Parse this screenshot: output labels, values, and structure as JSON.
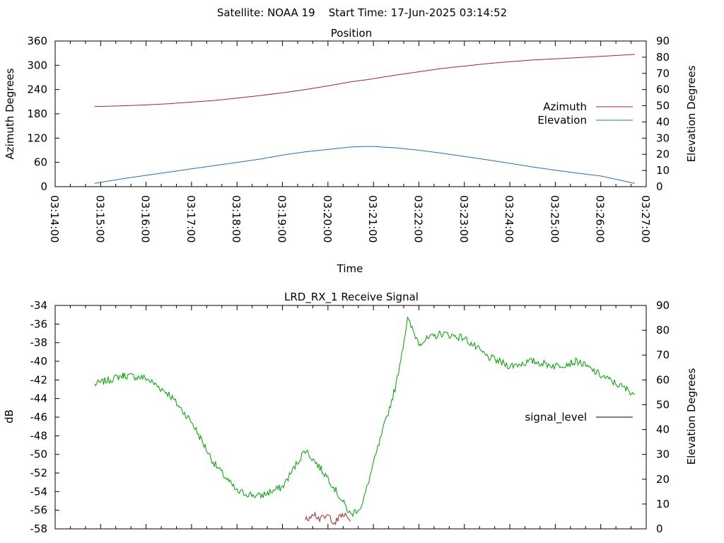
{
  "header": {
    "title": "Satellite: NOAA 19    Start Time: 17-Jun-2025 03:14:52"
  },
  "chart_data": [
    {
      "type": "line",
      "title": "Position",
      "xlabel": "Time",
      "ylabel": "Azimuth Degrees",
      "y2label": "Elevation Degrees",
      "xlim": [
        "03:14:00",
        "03:27:00"
      ],
      "ylim": [
        0,
        360
      ],
      "y2lim": [
        0,
        90
      ],
      "x_ticks": [
        "03:14:00",
        "03:15:00",
        "03:16:00",
        "03:17:00",
        "03:18:00",
        "03:19:00",
        "03:20:00",
        "03:21:00",
        "03:22:00",
        "03:23:00",
        "03:24:00",
        "03:25:00",
        "03:26:00",
        "03:27:00"
      ],
      "y_ticks": [
        "0",
        "60",
        "120",
        "180",
        "240",
        "300",
        "360"
      ],
      "y2_ticks": [
        "0",
        "10",
        "20",
        "30",
        "40",
        "50",
        "60",
        "70",
        "80",
        "90"
      ],
      "grid": false,
      "legend_position": "right",
      "x": [
        "03:14:52",
        "03:15:30",
        "03:16:00",
        "03:16:30",
        "03:17:00",
        "03:17:30",
        "03:18:00",
        "03:18:30",
        "03:19:00",
        "03:19:30",
        "03:20:00",
        "03:20:30",
        "03:20:50",
        "03:21:00",
        "03:21:30",
        "03:22:00",
        "03:22:30",
        "03:23:00",
        "03:23:30",
        "03:24:00",
        "03:24:30",
        "03:25:00",
        "03:25:30",
        "03:26:00",
        "03:26:45"
      ],
      "series": [
        {
          "name": "Azimuth",
          "axis": "left",
          "color": "#a0282d",
          "values": [
            198,
            200,
            202,
            205,
            209,
            213,
            219,
            225,
            232,
            240,
            249,
            259,
            264,
            267,
            276,
            284,
            292,
            298,
            304,
            309,
            313,
            316,
            319,
            322,
            327
          ]
        },
        {
          "name": "Elevation",
          "axis": "right",
          "color": "#2b6cb3",
          "values": [
            2,
            5,
            7,
            9,
            11,
            13,
            15,
            17,
            19.5,
            21.5,
            23,
            24.5,
            24.8,
            24.8,
            24,
            22.5,
            20.7,
            18.7,
            16.6,
            14.4,
            12.2,
            10.2,
            8.3,
            6.6,
            2
          ]
        }
      ]
    },
    {
      "type": "line",
      "title": "LRD_RX_1 Receive Signal",
      "ylabel": "dB",
      "y2label": "Elevation Degrees",
      "xlim": [
        "03:14:00",
        "03:27:00"
      ],
      "ylim": [
        -58,
        -34
      ],
      "y2lim": [
        0,
        90
      ],
      "y_ticks": [
        "-58",
        "-56",
        "-54",
        "-52",
        "-50",
        "-48",
        "-46",
        "-44",
        "-42",
        "-40",
        "-38",
        "-36",
        "-34"
      ],
      "y2_ticks": [
        "0",
        "10",
        "20",
        "30",
        "40",
        "50",
        "60",
        "70",
        "80",
        "90"
      ],
      "grid": false,
      "legend_position": "right",
      "legend": [
        {
          "name": "signal_level",
          "color": "#000000"
        }
      ],
      "series": [
        {
          "color": "#00a000",
          "x": [
            "03:14:52",
            "03:15:30",
            "03:16:00",
            "03:16:30",
            "03:17:00",
            "03:17:30",
            "03:18:00",
            "03:18:30",
            "03:19:00",
            "03:19:30",
            "03:20:00",
            "03:20:30",
            "03:20:45",
            "03:21:00",
            "03:21:30",
            "03:21:45",
            "03:22:00",
            "03:22:30",
            "03:23:00",
            "03:23:30",
            "03:24:00",
            "03:24:30",
            "03:25:00",
            "03:25:30",
            "03:26:00",
            "03:26:45"
          ],
          "values": [
            -42.5,
            -41.5,
            -41.8,
            -43.5,
            -46.5,
            -51,
            -54,
            -54.5,
            -53.5,
            -49.5,
            -52.5,
            -56.5,
            -55.5,
            -51,
            -42.5,
            -35.5,
            -38,
            -37,
            -37.5,
            -39.5,
            -40.5,
            -40,
            -40.5,
            -40,
            -41.5,
            -43.5
          ]
        },
        {
          "color": "#a0282d",
          "x": [
            "03:19:30",
            "03:19:40",
            "03:19:50",
            "03:20:00",
            "03:20:10",
            "03:20:20",
            "03:20:30"
          ],
          "values": [
            -57.2,
            -56.2,
            -57,
            -56.6,
            -57.3,
            -56.4,
            -57.2
          ]
        }
      ]
    }
  ]
}
